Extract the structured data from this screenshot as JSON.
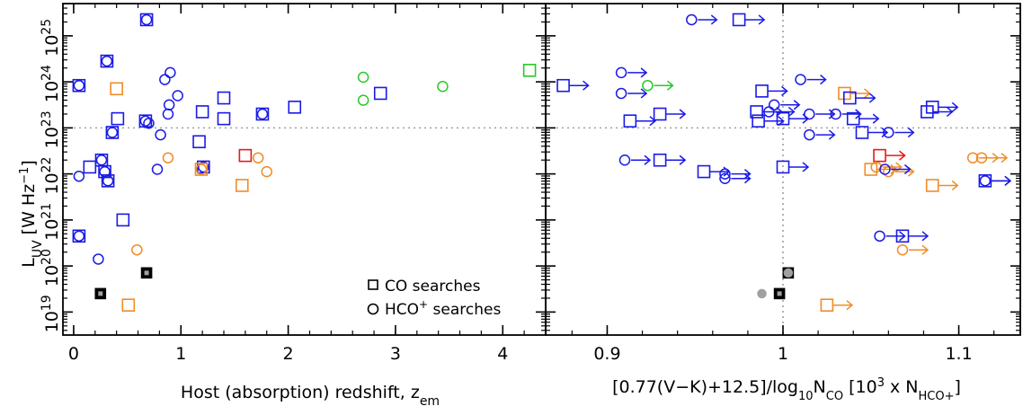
{
  "colors": {
    "blue": "#1a1ae6",
    "orange": "#f08c28",
    "green": "#28c828",
    "red": "#e61a1a",
    "black": "#000000",
    "grey": "#a0a0a0",
    "refline": "#a0a0a0"
  },
  "legend": {
    "placement": "bottom-right of left panel",
    "items": [
      {
        "marker": "square",
        "label": "CO searches"
      },
      {
        "marker": "circle",
        "label": "HCO+ searches"
      }
    ]
  },
  "chart_data": [
    {
      "type": "scatter",
      "panel": "left",
      "xlabel": "Host (absorption) redshift, z",
      "xlabel_sub": "em",
      "ylabel": "L",
      "ylabel_sub": "UV",
      "ylabel_unit": "[W Hz",
      "ylabel_unit_sup": "−1",
      "ylabel_unit_close": "]",
      "x_scale": "linear",
      "y_scale": "log",
      "xlim": [
        -0.1,
        4.4
      ],
      "ylim": [
        18.5,
        25.7
      ],
      "x_ticks": [
        0,
        1,
        2,
        3,
        4
      ],
      "x_tick_labels": [
        "0",
        "1",
        "2",
        "3",
        "4"
      ],
      "y_ticks": [
        19,
        20,
        21,
        22,
        23,
        24,
        25
      ],
      "y_tick_labels": [
        "10",
        "10",
        "10",
        "10",
        "10",
        "10",
        "10"
      ],
      "y_tick_sups": [
        "19",
        "20",
        "21",
        "22",
        "23",
        "24",
        "25"
      ],
      "reference_lines": [
        {
          "axis": "y",
          "value": 23.0,
          "style": "dotted"
        }
      ],
      "points": [
        {
          "x": 0.68,
          "y": 25.35,
          "marker": "square",
          "color": "blue"
        },
        {
          "x": 0.68,
          "y": 25.35,
          "marker": "circle",
          "color": "blue"
        },
        {
          "x": 0.31,
          "y": 24.45,
          "marker": "square",
          "color": "blue"
        },
        {
          "x": 0.31,
          "y": 24.45,
          "marker": "circle",
          "color": "blue"
        },
        {
          "x": 0.05,
          "y": 23.92,
          "marker": "square",
          "color": "blue"
        },
        {
          "x": 0.05,
          "y": 23.92,
          "marker": "circle",
          "color": "blue"
        },
        {
          "x": 0.41,
          "y": 23.2,
          "marker": "square",
          "color": "blue"
        },
        {
          "x": 0.4,
          "y": 23.85,
          "marker": "square",
          "color": "orange"
        },
        {
          "x": 0.36,
          "y": 22.9,
          "marker": "square",
          "color": "blue"
        },
        {
          "x": 0.36,
          "y": 22.9,
          "marker": "circle",
          "color": "blue"
        },
        {
          "x": 0.67,
          "y": 23.15,
          "marker": "square",
          "color": "blue"
        },
        {
          "x": 0.67,
          "y": 23.15,
          "marker": "circle",
          "color": "blue"
        },
        {
          "x": 0.7,
          "y": 23.1,
          "marker": "circle",
          "color": "blue"
        },
        {
          "x": 0.85,
          "y": 24.05,
          "marker": "circle",
          "color": "blue"
        },
        {
          "x": 0.9,
          "y": 24.2,
          "marker": "circle",
          "color": "blue"
        },
        {
          "x": 0.97,
          "y": 23.7,
          "marker": "circle",
          "color": "blue"
        },
        {
          "x": 0.89,
          "y": 23.5,
          "marker": "circle",
          "color": "blue"
        },
        {
          "x": 0.88,
          "y": 23.3,
          "marker": "circle",
          "color": "blue"
        },
        {
          "x": 0.81,
          "y": 22.85,
          "marker": "circle",
          "color": "blue"
        },
        {
          "x": 1.2,
          "y": 23.35,
          "marker": "square",
          "color": "blue"
        },
        {
          "x": 1.4,
          "y": 23.65,
          "marker": "square",
          "color": "blue"
        },
        {
          "x": 1.4,
          "y": 23.2,
          "marker": "square",
          "color": "blue"
        },
        {
          "x": 1.17,
          "y": 22.7,
          "marker": "square",
          "color": "blue"
        },
        {
          "x": 1.76,
          "y": 23.3,
          "marker": "square",
          "color": "blue"
        },
        {
          "x": 1.76,
          "y": 23.3,
          "marker": "circle",
          "color": "blue"
        },
        {
          "x": 2.06,
          "y": 23.45,
          "marker": "square",
          "color": "blue"
        },
        {
          "x": 2.86,
          "y": 23.75,
          "marker": "square",
          "color": "blue"
        },
        {
          "x": 0.15,
          "y": 22.15,
          "marker": "square",
          "color": "blue"
        },
        {
          "x": 0.26,
          "y": 22.3,
          "marker": "square",
          "color": "blue"
        },
        {
          "x": 0.26,
          "y": 22.3,
          "marker": "circle",
          "color": "blue"
        },
        {
          "x": 0.29,
          "y": 22.05,
          "marker": "square",
          "color": "blue"
        },
        {
          "x": 0.29,
          "y": 22.05,
          "marker": "circle",
          "color": "blue"
        },
        {
          "x": 0.32,
          "y": 21.85,
          "marker": "square",
          "color": "blue"
        },
        {
          "x": 0.32,
          "y": 21.85,
          "marker": "circle",
          "color": "blue"
        },
        {
          "x": 0.05,
          "y": 21.95,
          "marker": "circle",
          "color": "blue"
        },
        {
          "x": 1.21,
          "y": 22.15,
          "marker": "square",
          "color": "blue"
        },
        {
          "x": 1.21,
          "y": 22.15,
          "marker": "circle",
          "color": "blue"
        },
        {
          "x": 1.19,
          "y": 22.1,
          "marker": "square",
          "color": "orange"
        },
        {
          "x": 1.19,
          "y": 22.1,
          "marker": "circle",
          "color": "orange"
        },
        {
          "x": 0.78,
          "y": 22.1,
          "marker": "circle",
          "color": "blue"
        },
        {
          "x": 0.88,
          "y": 22.35,
          "marker": "circle",
          "color": "orange"
        },
        {
          "x": 1.6,
          "y": 22.4,
          "marker": "square",
          "color": "red"
        },
        {
          "x": 1.72,
          "y": 22.35,
          "marker": "circle",
          "color": "orange"
        },
        {
          "x": 1.8,
          "y": 22.05,
          "marker": "circle",
          "color": "orange"
        },
        {
          "x": 1.57,
          "y": 21.75,
          "marker": "square",
          "color": "orange"
        },
        {
          "x": 0.46,
          "y": 21.0,
          "marker": "square",
          "color": "blue"
        },
        {
          "x": 0.05,
          "y": 20.65,
          "marker": "square",
          "color": "blue"
        },
        {
          "x": 0.05,
          "y": 20.65,
          "marker": "circle",
          "color": "blue"
        },
        {
          "x": 0.59,
          "y": 20.35,
          "marker": "circle",
          "color": "orange"
        },
        {
          "x": 0.23,
          "y": 20.15,
          "marker": "circle",
          "color": "blue"
        },
        {
          "x": 0.68,
          "y": 19.85,
          "marker": "square",
          "color": "black",
          "filled": true
        },
        {
          "x": 0.25,
          "y": 19.4,
          "marker": "square",
          "color": "black",
          "filled": true
        },
        {
          "x": 0.51,
          "y": 19.15,
          "marker": "square",
          "color": "orange"
        },
        {
          "x": 2.7,
          "y": 24.1,
          "marker": "circle",
          "color": "green"
        },
        {
          "x": 2.7,
          "y": 23.6,
          "marker": "circle",
          "color": "green"
        },
        {
          "x": 3.44,
          "y": 23.9,
          "marker": "circle",
          "color": "green"
        },
        {
          "x": 4.25,
          "y": 24.25,
          "marker": "square",
          "color": "green"
        }
      ]
    },
    {
      "type": "scatter",
      "panel": "right",
      "xlabel": "[0.77(V−K)+12.5]/log",
      "xlabel_sub1": "10",
      "xlabel_mid": "N",
      "xlabel_sub2": "CO",
      "xlabel_bracket": " [10",
      "xlabel_sup": "3",
      "xlabel_tail": " x N",
      "xlabel_sub3": "HCO+",
      "xlabel_close": "]",
      "x_scale": "linear",
      "y_scale": "log",
      "xlim": [
        0.865,
        1.135
      ],
      "ylim": [
        18.5,
        25.7
      ],
      "x_ticks": [
        0.9,
        1.0,
        1.1
      ],
      "x_tick_labels": [
        "0.9",
        "1",
        "1.1"
      ],
      "reference_lines": [
        {
          "axis": "y",
          "value": 23.0,
          "style": "dotted"
        },
        {
          "axis": "x",
          "value": 1.0,
          "style": "dotted"
        }
      ],
      "points": [
        {
          "x": 0.975,
          "y": 25.35,
          "marker": "square",
          "color": "blue",
          "arrow": "right"
        },
        {
          "x": 0.948,
          "y": 25.35,
          "marker": "circle",
          "color": "blue",
          "arrow": "right"
        },
        {
          "x": 0.908,
          "y": 24.2,
          "marker": "circle",
          "color": "blue",
          "arrow": "right"
        },
        {
          "x": 0.875,
          "y": 23.92,
          "marker": "square",
          "color": "blue",
          "arrow": "right"
        },
        {
          "x": 0.908,
          "y": 23.75,
          "marker": "circle",
          "color": "blue",
          "arrow": "right"
        },
        {
          "x": 0.923,
          "y": 23.92,
          "marker": "circle",
          "color": "green",
          "arrow": "right"
        },
        {
          "x": 0.93,
          "y": 23.3,
          "marker": "square",
          "color": "blue",
          "arrow": "right"
        },
        {
          "x": 0.913,
          "y": 23.15,
          "marker": "square",
          "color": "blue",
          "arrow": "right"
        },
        {
          "x": 0.988,
          "y": 23.8,
          "marker": "square",
          "color": "blue",
          "arrow": "right"
        },
        {
          "x": 0.985,
          "y": 23.35,
          "marker": "square",
          "color": "blue",
          "arrow": "right"
        },
        {
          "x": 0.986,
          "y": 23.15,
          "marker": "square",
          "color": "blue",
          "arrow": "right"
        },
        {
          "x": 0.992,
          "y": 23.35,
          "marker": "circle",
          "color": "blue",
          "arrow": "right"
        },
        {
          "x": 0.995,
          "y": 23.5,
          "marker": "circle",
          "color": "blue",
          "arrow": "right"
        },
        {
          "x": 1.0,
          "y": 23.2,
          "marker": "square",
          "color": "blue",
          "arrow": "right"
        },
        {
          "x": 1.01,
          "y": 24.05,
          "marker": "circle",
          "color": "blue",
          "arrow": "right"
        },
        {
          "x": 1.015,
          "y": 23.3,
          "marker": "circle",
          "color": "blue",
          "arrow": "right"
        },
        {
          "x": 1.015,
          "y": 22.85,
          "marker": "circle",
          "color": "blue",
          "arrow": "right"
        },
        {
          "x": 1.03,
          "y": 23.3,
          "marker": "circle",
          "color": "blue",
          "arrow": "right"
        },
        {
          "x": 1.035,
          "y": 23.75,
          "marker": "square",
          "color": "orange",
          "arrow": "right"
        },
        {
          "x": 1.038,
          "y": 23.65,
          "marker": "square",
          "color": "blue",
          "arrow": "right"
        },
        {
          "x": 1.04,
          "y": 23.2,
          "marker": "square",
          "color": "blue",
          "arrow": "right"
        },
        {
          "x": 1.045,
          "y": 22.9,
          "marker": "square",
          "color": "blue",
          "arrow": "right"
        },
        {
          "x": 1.06,
          "y": 22.9,
          "marker": "circle",
          "color": "blue",
          "arrow": "right"
        },
        {
          "x": 1.085,
          "y": 23.45,
          "marker": "square",
          "color": "blue",
          "arrow": "right"
        },
        {
          "x": 1.082,
          "y": 23.35,
          "marker": "square",
          "color": "blue",
          "arrow": "right"
        },
        {
          "x": 0.91,
          "y": 22.3,
          "marker": "circle",
          "color": "blue",
          "arrow": "right"
        },
        {
          "x": 0.93,
          "y": 22.3,
          "marker": "square",
          "color": "blue",
          "arrow": "right"
        },
        {
          "x": 0.955,
          "y": 22.05,
          "marker": "square",
          "color": "blue",
          "arrow": "right"
        },
        {
          "x": 0.967,
          "y": 22.0,
          "marker": "circle",
          "color": "blue",
          "arrow": "right"
        },
        {
          "x": 0.967,
          "y": 21.9,
          "marker": "circle",
          "color": "blue",
          "arrow": "right"
        },
        {
          "x": 1.0,
          "y": 22.15,
          "marker": "square",
          "color": "blue",
          "arrow": "right"
        },
        {
          "x": 1.055,
          "y": 22.4,
          "marker": "square",
          "color": "red",
          "arrow": "right"
        },
        {
          "x": 1.053,
          "y": 22.15,
          "marker": "circle",
          "color": "orange",
          "arrow": "right"
        },
        {
          "x": 1.05,
          "y": 22.1,
          "marker": "square",
          "color": "orange",
          "arrow": "right"
        },
        {
          "x": 1.06,
          "y": 22.05,
          "marker": "circle",
          "color": "orange",
          "arrow": "right"
        },
        {
          "x": 1.058,
          "y": 22.1,
          "marker": "circle",
          "color": "blue",
          "arrow": "right"
        },
        {
          "x": 1.108,
          "y": 22.35,
          "marker": "circle",
          "color": "orange",
          "arrow": "right"
        },
        {
          "x": 1.113,
          "y": 22.35,
          "marker": "circle",
          "color": "orange",
          "arrow": "right"
        },
        {
          "x": 1.085,
          "y": 21.75,
          "marker": "square",
          "color": "orange",
          "arrow": "right"
        },
        {
          "x": 1.115,
          "y": 21.85,
          "marker": "square",
          "color": "blue",
          "arrow": "right"
        },
        {
          "x": 1.115,
          "y": 21.85,
          "marker": "circle",
          "color": "blue",
          "arrow": "right"
        },
        {
          "x": 1.068,
          "y": 20.65,
          "marker": "square",
          "color": "blue",
          "arrow": "right"
        },
        {
          "x": 1.055,
          "y": 20.65,
          "marker": "circle",
          "color": "blue",
          "arrow": "right"
        },
        {
          "x": 1.068,
          "y": 20.35,
          "marker": "circle",
          "color": "orange",
          "arrow": "right"
        },
        {
          "x": 1.003,
          "y": 19.85,
          "marker": "square",
          "color": "black",
          "filled": true
        },
        {
          "x": 1.003,
          "y": 19.85,
          "marker": "circle",
          "color": "grey",
          "filled": true
        },
        {
          "x": 0.998,
          "y": 19.4,
          "marker": "square",
          "color": "black",
          "filled": true
        },
        {
          "x": 0.988,
          "y": 19.4,
          "marker": "circle",
          "color": "grey",
          "filled": true
        },
        {
          "x": 1.025,
          "y": 19.15,
          "marker": "square",
          "color": "orange",
          "arrow": "right"
        }
      ]
    }
  ]
}
